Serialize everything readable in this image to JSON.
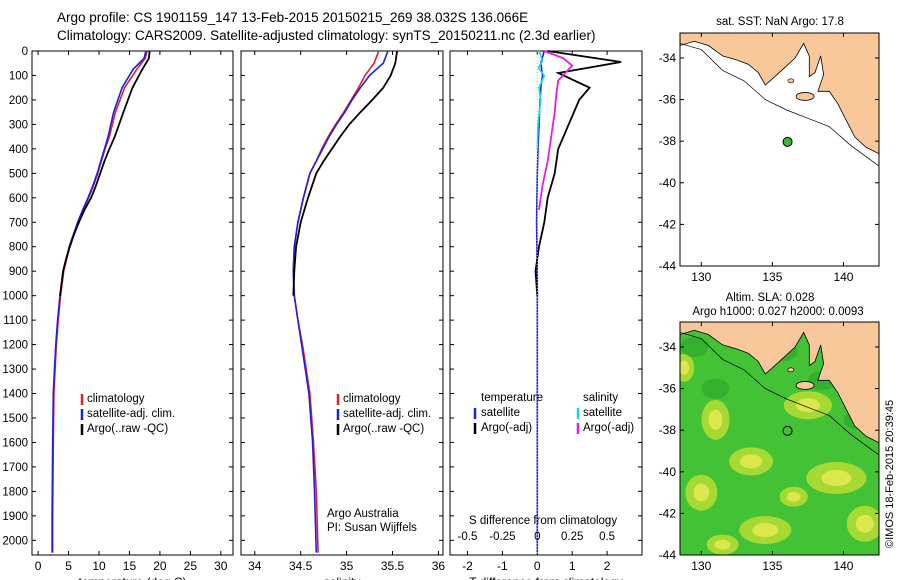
{
  "title": {
    "line1": "Argo profile: CS 1901159_147 13-Feb-2015 20150215_269 38.032S 136.066E",
    "line2": "Climatology: CARS2009. Satellite-adjusted climatology: synTS_20150211.nc (2.3d earlier)"
  },
  "stamp": "©IMOS 18-Feb-2015 20:39:45",
  "colors": {
    "climatology": "#e0202a",
    "satellite": "#1f1fe0",
    "argo": "#000000",
    "sat_salinity": "#18d8e8",
    "argo_salinity_diff": "#e020e0",
    "land": "#f8c89a",
    "float_marker": "#3cb832"
  },
  "chart_data": [
    {
      "type": "line",
      "panel": "temperature",
      "xlabel": "temperature (deg C)",
      "xlim": [
        -1,
        32
      ],
      "xticks": [
        0,
        5,
        10,
        15,
        20,
        25,
        30
      ],
      "ylim": [
        0,
        2060
      ],
      "yticks": [
        0,
        100,
        200,
        300,
        400,
        500,
        600,
        700,
        800,
        900,
        1000,
        1100,
        1200,
        1300,
        1400,
        1500,
        1600,
        1700,
        1800,
        1900,
        2000
      ],
      "y_reversed": true,
      "legend": [
        "climatology",
        "satellite-adj. clim.",
        "Argo(..raw -QC)"
      ],
      "series": [
        {
          "name": "climatology",
          "x": [
            17.9,
            17.6,
            16.2,
            14.2,
            12.7,
            11.7,
            11.0,
            10.4,
            9.8,
            9.1,
            8.3,
            7.4,
            6.6,
            5.9,
            5.2,
            4.7,
            4.2,
            3.7,
            3.3,
            3.0,
            2.8,
            2.6,
            2.5,
            2.4,
            2.4
          ],
          "y": [
            0,
            30,
            75,
            150,
            250,
            350,
            400,
            450,
            500,
            550,
            600,
            650,
            700,
            750,
            800,
            850,
            900,
            1000,
            1100,
            1200,
            1300,
            1400,
            1600,
            1900,
            2050
          ]
        },
        {
          "name": "satellite-adj. clim.",
          "x": [
            17.7,
            17.4,
            15.6,
            13.8,
            12.4,
            11.5,
            10.9,
            10.3,
            9.7,
            9.0,
            8.2,
            7.3,
            6.5,
            5.8,
            5.1,
            4.6,
            4.1,
            3.6,
            3.2,
            2.9,
            2.7,
            2.5,
            2.4,
            2.3,
            2.3
          ],
          "y": [
            0,
            30,
            75,
            150,
            250,
            350,
            400,
            450,
            500,
            550,
            600,
            650,
            700,
            750,
            800,
            850,
            900,
            1000,
            1100,
            1200,
            1300,
            1400,
            1600,
            1900,
            2050
          ]
        },
        {
          "name": "Argo(..raw -QC)",
          "x": [
            18.3,
            18.2,
            17.0,
            15.5,
            14.0,
            12.6,
            11.7,
            10.9,
            10.2,
            9.5,
            8.7,
            7.6,
            6.7,
            5.9,
            5.2,
            4.6,
            4.1,
            3.6
          ],
          "y": [
            0,
            30,
            80,
            150,
            250,
            350,
            400,
            450,
            500,
            550,
            600,
            650,
            700,
            750,
            800,
            850,
            900,
            1000
          ]
        }
      ]
    },
    {
      "type": "line",
      "panel": "salinity",
      "xlabel": "salinity",
      "xlim": [
        33.85,
        36.05
      ],
      "xticks": [
        34,
        34.5,
        35,
        35.5,
        36
      ],
      "ylim": [
        0,
        2060
      ],
      "y_reversed": true,
      "legend": [
        "climatology",
        "satellite-adj. clim.",
        "Argo(..raw -QC)"
      ],
      "annotation": [
        "Argo Australia",
        "PI: Susan Wijffels"
      ],
      "series": [
        {
          "name": "climatology",
          "x": [
            35.35,
            35.3,
            35.2,
            35.13,
            35.05,
            34.97,
            34.88,
            34.8,
            34.73,
            34.67,
            34.6,
            34.53,
            34.47,
            34.43,
            34.42,
            34.43,
            34.47,
            34.52,
            34.56,
            34.6,
            34.64,
            34.67,
            34.69
          ],
          "y": [
            0,
            50,
            100,
            150,
            200,
            250,
            300,
            350,
            400,
            450,
            500,
            600,
            700,
            800,
            900,
            1000,
            1100,
            1200,
            1300,
            1400,
            1600,
            1800,
            2050
          ]
        },
        {
          "name": "satellite-adj. clim.",
          "x": [
            35.45,
            35.4,
            35.25,
            35.15,
            35.06,
            34.98,
            34.89,
            34.81,
            34.74,
            34.67,
            34.6,
            34.53,
            34.47,
            34.43,
            34.42,
            34.43,
            34.47,
            34.51,
            34.55,
            34.59,
            34.63,
            34.65,
            34.67
          ],
          "y": [
            0,
            50,
            100,
            150,
            200,
            250,
            300,
            350,
            400,
            450,
            500,
            600,
            700,
            800,
            900,
            1000,
            1100,
            1200,
            1300,
            1400,
            1600,
            1800,
            2050
          ]
        },
        {
          "name": "Argo(..raw -QC)",
          "x": [
            35.55,
            35.53,
            35.48,
            35.4,
            35.28,
            35.15,
            35.03,
            34.93,
            34.84,
            34.75,
            34.67,
            34.58,
            34.5,
            34.45,
            34.43,
            34.42
          ],
          "y": [
            0,
            50,
            100,
            150,
            200,
            250,
            300,
            350,
            400,
            450,
            500,
            600,
            700,
            800,
            900,
            1000
          ]
        }
      ]
    },
    {
      "type": "line",
      "panel": "difference",
      "xlabel": "T difference from climatology",
      "xlabel_top": "S difference from climatology",
      "xlim": [
        -2.5,
        3
      ],
      "xticks": [
        -2,
        -1,
        0,
        1,
        2
      ],
      "s_xticks": [
        "-0.5",
        "-0.25",
        "0",
        "0.25",
        "0.5"
      ],
      "ylim": [
        0,
        2060
      ],
      "y_reversed": true,
      "legend_temperature": {
        "heading": "temperature",
        "items": [
          "satellite",
          "Argo(-adj)"
        ]
      },
      "legend_salinity": {
        "heading": "salinity",
        "items": [
          "satellite",
          "Argo(-adj)"
        ]
      },
      "series": [
        {
          "name": "temperature satellite",
          "x": [
            0.2,
            0.1,
            0.15,
            0.1,
            0.08,
            0.05,
            0.02,
            0,
            -0.02,
            0,
            0,
            0,
            0,
            0
          ],
          "y": [
            0,
            50,
            100,
            150,
            200,
            300,
            400,
            500,
            700,
            900,
            1100,
            1400,
            1800,
            2050
          ]
        },
        {
          "name": "temperature Argo(-adj)",
          "x": [
            0.3,
            2.4,
            0.6,
            1.5,
            1.2,
            0.9,
            0.6,
            0.5,
            0.3,
            0.2,
            0.05,
            -0.05,
            0
          ],
          "y": [
            0,
            45,
            90,
            150,
            200,
            300,
            400,
            500,
            600,
            700,
            800,
            900,
            1000
          ]
        },
        {
          "name": "salinity satellite",
          "x": [
            0.05,
            0.15,
            0.03,
            0.2,
            0.05,
            0.1,
            0.02,
            0
          ],
          "y": [
            0,
            40,
            70,
            100,
            150,
            200,
            300,
            400
          ]
        },
        {
          "name": "salinity Argo(-adj)",
          "x": [
            0.2,
            0.75,
            1.0,
            0.6,
            0.55,
            0.5,
            0.4,
            0.3,
            0.15,
            0.05
          ],
          "y": [
            0,
            30,
            60,
            120,
            170,
            250,
            350,
            450,
            550,
            650
          ]
        }
      ]
    }
  ],
  "map_sst": {
    "title": "sat. SST: NaN Argo: 17.8",
    "xticks": [
      130,
      135,
      140
    ],
    "yticks": [
      -34,
      -36,
      -38,
      -40,
      -42,
      -44
    ],
    "xlim": [
      128.5,
      142.5
    ],
    "ylim": [
      -44,
      -32.8
    ],
    "float_position": {
      "lon": 136.066,
      "lat": -38.032
    }
  },
  "map_sla": {
    "title_line1": "Altim. SLA: 0.028",
    "title_line2": "Argo h1000: 0.027 h2000: 0.0093",
    "xticks": [
      130,
      135,
      140
    ],
    "yticks": [
      -34,
      -36,
      -38,
      -40,
      -42,
      -44
    ],
    "xlim": [
      128.5,
      142.5
    ],
    "ylim": [
      -44,
      -32.8
    ],
    "float_position": {
      "lon": 136.066,
      "lat": -38.032
    }
  }
}
